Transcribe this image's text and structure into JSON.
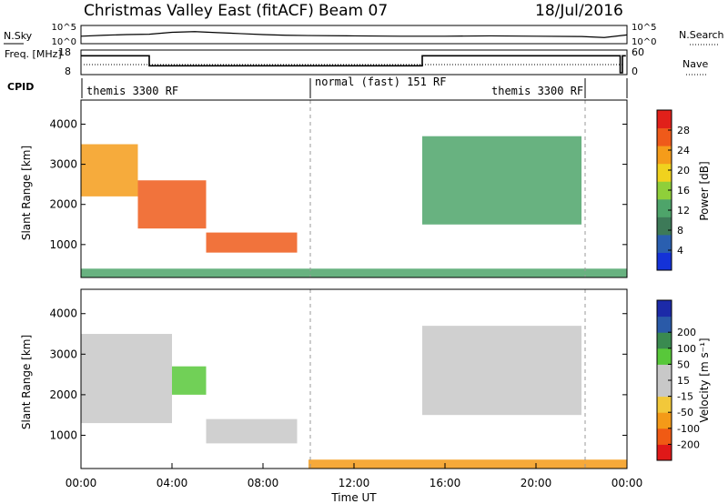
{
  "header": {
    "title": "Christmas Valley East (fitACF)",
    "beam": "Beam 07",
    "date": "18/Jul/2016"
  },
  "colors": {
    "power_scale": [
      "#1432d8",
      "#2a5fb0",
      "#3d7a58",
      "#4ea46a",
      "#8fcf3a",
      "#f0d21e",
      "#f59c1a",
      "#ef5a1a",
      "#e1201a"
    ],
    "velocity_scale": [
      "#e01818",
      "#f05a14",
      "#f49a18",
      "#f2c83a",
      "#c8c8c8",
      "#c8c8c8",
      "#58c83a",
      "#3a8a50",
      "#2a5aa8",
      "#1c2aa8"
    ]
  },
  "chart_data": [
    {
      "type": "line",
      "name": "noise-panel",
      "left_label": "N.Sky",
      "right_label": "N.Search",
      "left_ticks": [
        "10^5",
        "10^0"
      ],
      "right_ticks": [
        "10^5",
        "10^0"
      ],
      "series": [
        {
          "name": "N.Sky",
          "x": [
            0,
            1,
            2,
            3,
            4,
            5,
            6,
            7,
            8,
            9,
            10,
            12,
            14,
            16,
            18,
            20,
            22,
            23,
            24
          ],
          "y": [
            2.0,
            2.3,
            2.5,
            2.6,
            3.2,
            3.4,
            3.1,
            2.8,
            2.5,
            2.3,
            2.2,
            2.1,
            2.0,
            2.0,
            2.1,
            2.0,
            1.9,
            1.6,
            2.4
          ]
        }
      ]
    },
    {
      "type": "line",
      "name": "freq-panel",
      "left_label": "Freq. [MHz]",
      "right_label": "Nave",
      "left_ticks": [
        "18",
        "8"
      ],
      "right_ticks": [
        "60",
        "0"
      ],
      "series": [
        {
          "name": "Freq.",
          "x": [
            0,
            3.0,
            3.0,
            15.0,
            15.0,
            23.7,
            23.7,
            23.8,
            23.8,
            24
          ],
          "y": [
            16.5,
            16.5,
            11.5,
            11.5,
            16.5,
            16.5,
            8,
            8,
            16.5,
            16.5
          ]
        }
      ]
    },
    {
      "type": "table",
      "name": "cpid-bar",
      "label": "CPID",
      "segments": [
        {
          "start": 0,
          "end": 10,
          "text": "themis 3300 RF"
        },
        {
          "start": 10,
          "end": 22,
          "text": "normal (fast) 151 RF"
        },
        {
          "start": 18,
          "end": 22,
          "text": "themis 3300 RF"
        }
      ]
    },
    {
      "type": "heatmap",
      "name": "power-panel",
      "ylabel": "Slant Range [km]",
      "y_ticks": [
        1000,
        2000,
        3000,
        4000
      ],
      "ylim": [
        180,
        4600
      ],
      "colorbar_label": "Power [dB]",
      "colorbar_ticks": [
        4,
        8,
        12,
        16,
        20,
        24,
        28
      ],
      "colorbar_range": [
        0,
        32
      ],
      "regions": [
        {
          "t": [
            0.0,
            2.5
          ],
          "r": [
            2200,
            3500
          ],
          "v": 22
        },
        {
          "t": [
            2.5,
            5.5
          ],
          "r": [
            1400,
            2600
          ],
          "v": 26
        },
        {
          "t": [
            5.5,
            9.5
          ],
          "r": [
            800,
            1300
          ],
          "v": 28
        },
        {
          "t": [
            15.0,
            22.0
          ],
          "r": [
            1500,
            3700
          ],
          "v": 12
        },
        {
          "t": [
            0.0,
            24.0
          ],
          "r": [
            180,
            400
          ],
          "v": 12
        }
      ]
    },
    {
      "type": "heatmap",
      "name": "velocity-panel",
      "ylabel": "Slant Range [km]",
      "xlabel": "Time UT",
      "y_ticks": [
        1000,
        2000,
        3000,
        4000
      ],
      "ylim": [
        180,
        4600
      ],
      "x_ticks": [
        "00:00",
        "04:00",
        "08:00",
        "12:00",
        "16:00",
        "20:00",
        "00:00"
      ],
      "xlim": [
        0,
        24
      ],
      "colorbar_label": "Velocity [m s⁻¹]",
      "colorbar_ticks": [
        -200,
        -100,
        -50,
        -15,
        15,
        50,
        100,
        200
      ],
      "regions": [
        {
          "t": [
            0.0,
            4.0
          ],
          "r": [
            1300,
            3500
          ],
          "v": 0
        },
        {
          "t": [
            4.0,
            5.5
          ],
          "r": [
            2000,
            2700
          ],
          "v": 50
        },
        {
          "t": [
            5.5,
            9.5
          ],
          "r": [
            800,
            1400
          ],
          "v": 40
        },
        {
          "t": [
            15.0,
            22.0
          ],
          "r": [
            1500,
            3700
          ],
          "v": 0
        },
        {
          "t": [
            10.0,
            24.0
          ],
          "r": [
            180,
            400
          ],
          "v": -60
        }
      ]
    }
  ]
}
